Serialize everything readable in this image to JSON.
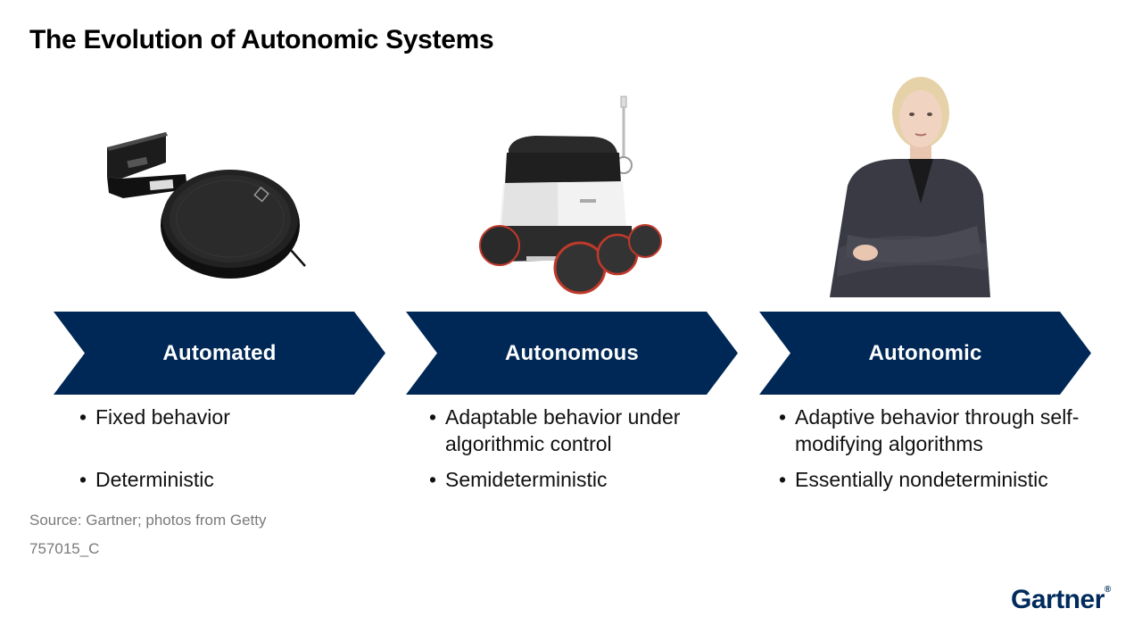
{
  "title": "The Evolution of Autonomic Systems",
  "colors": {
    "chevron": "#002856",
    "brand": "#002b5c"
  },
  "stages": [
    {
      "label": "Automated",
      "image": "robot-vacuum",
      "bullets": [
        "Fixed behavior",
        "Deterministic"
      ]
    },
    {
      "label": "Autonomous",
      "image": "delivery-robot",
      "bullets": [
        "Adaptable behavior under algorithmic control",
        "Semideterministic"
      ]
    },
    {
      "label": "Autonomic",
      "image": "businesswoman",
      "bullets": [
        "Adaptive behavior through self-modifying algorithms",
        "Essentially nondeterministic"
      ]
    }
  ],
  "footer": {
    "source": "Source: Gartner; photos from Getty",
    "code": "757015_C",
    "logo": "Gartner",
    "logo_mark": "®"
  }
}
